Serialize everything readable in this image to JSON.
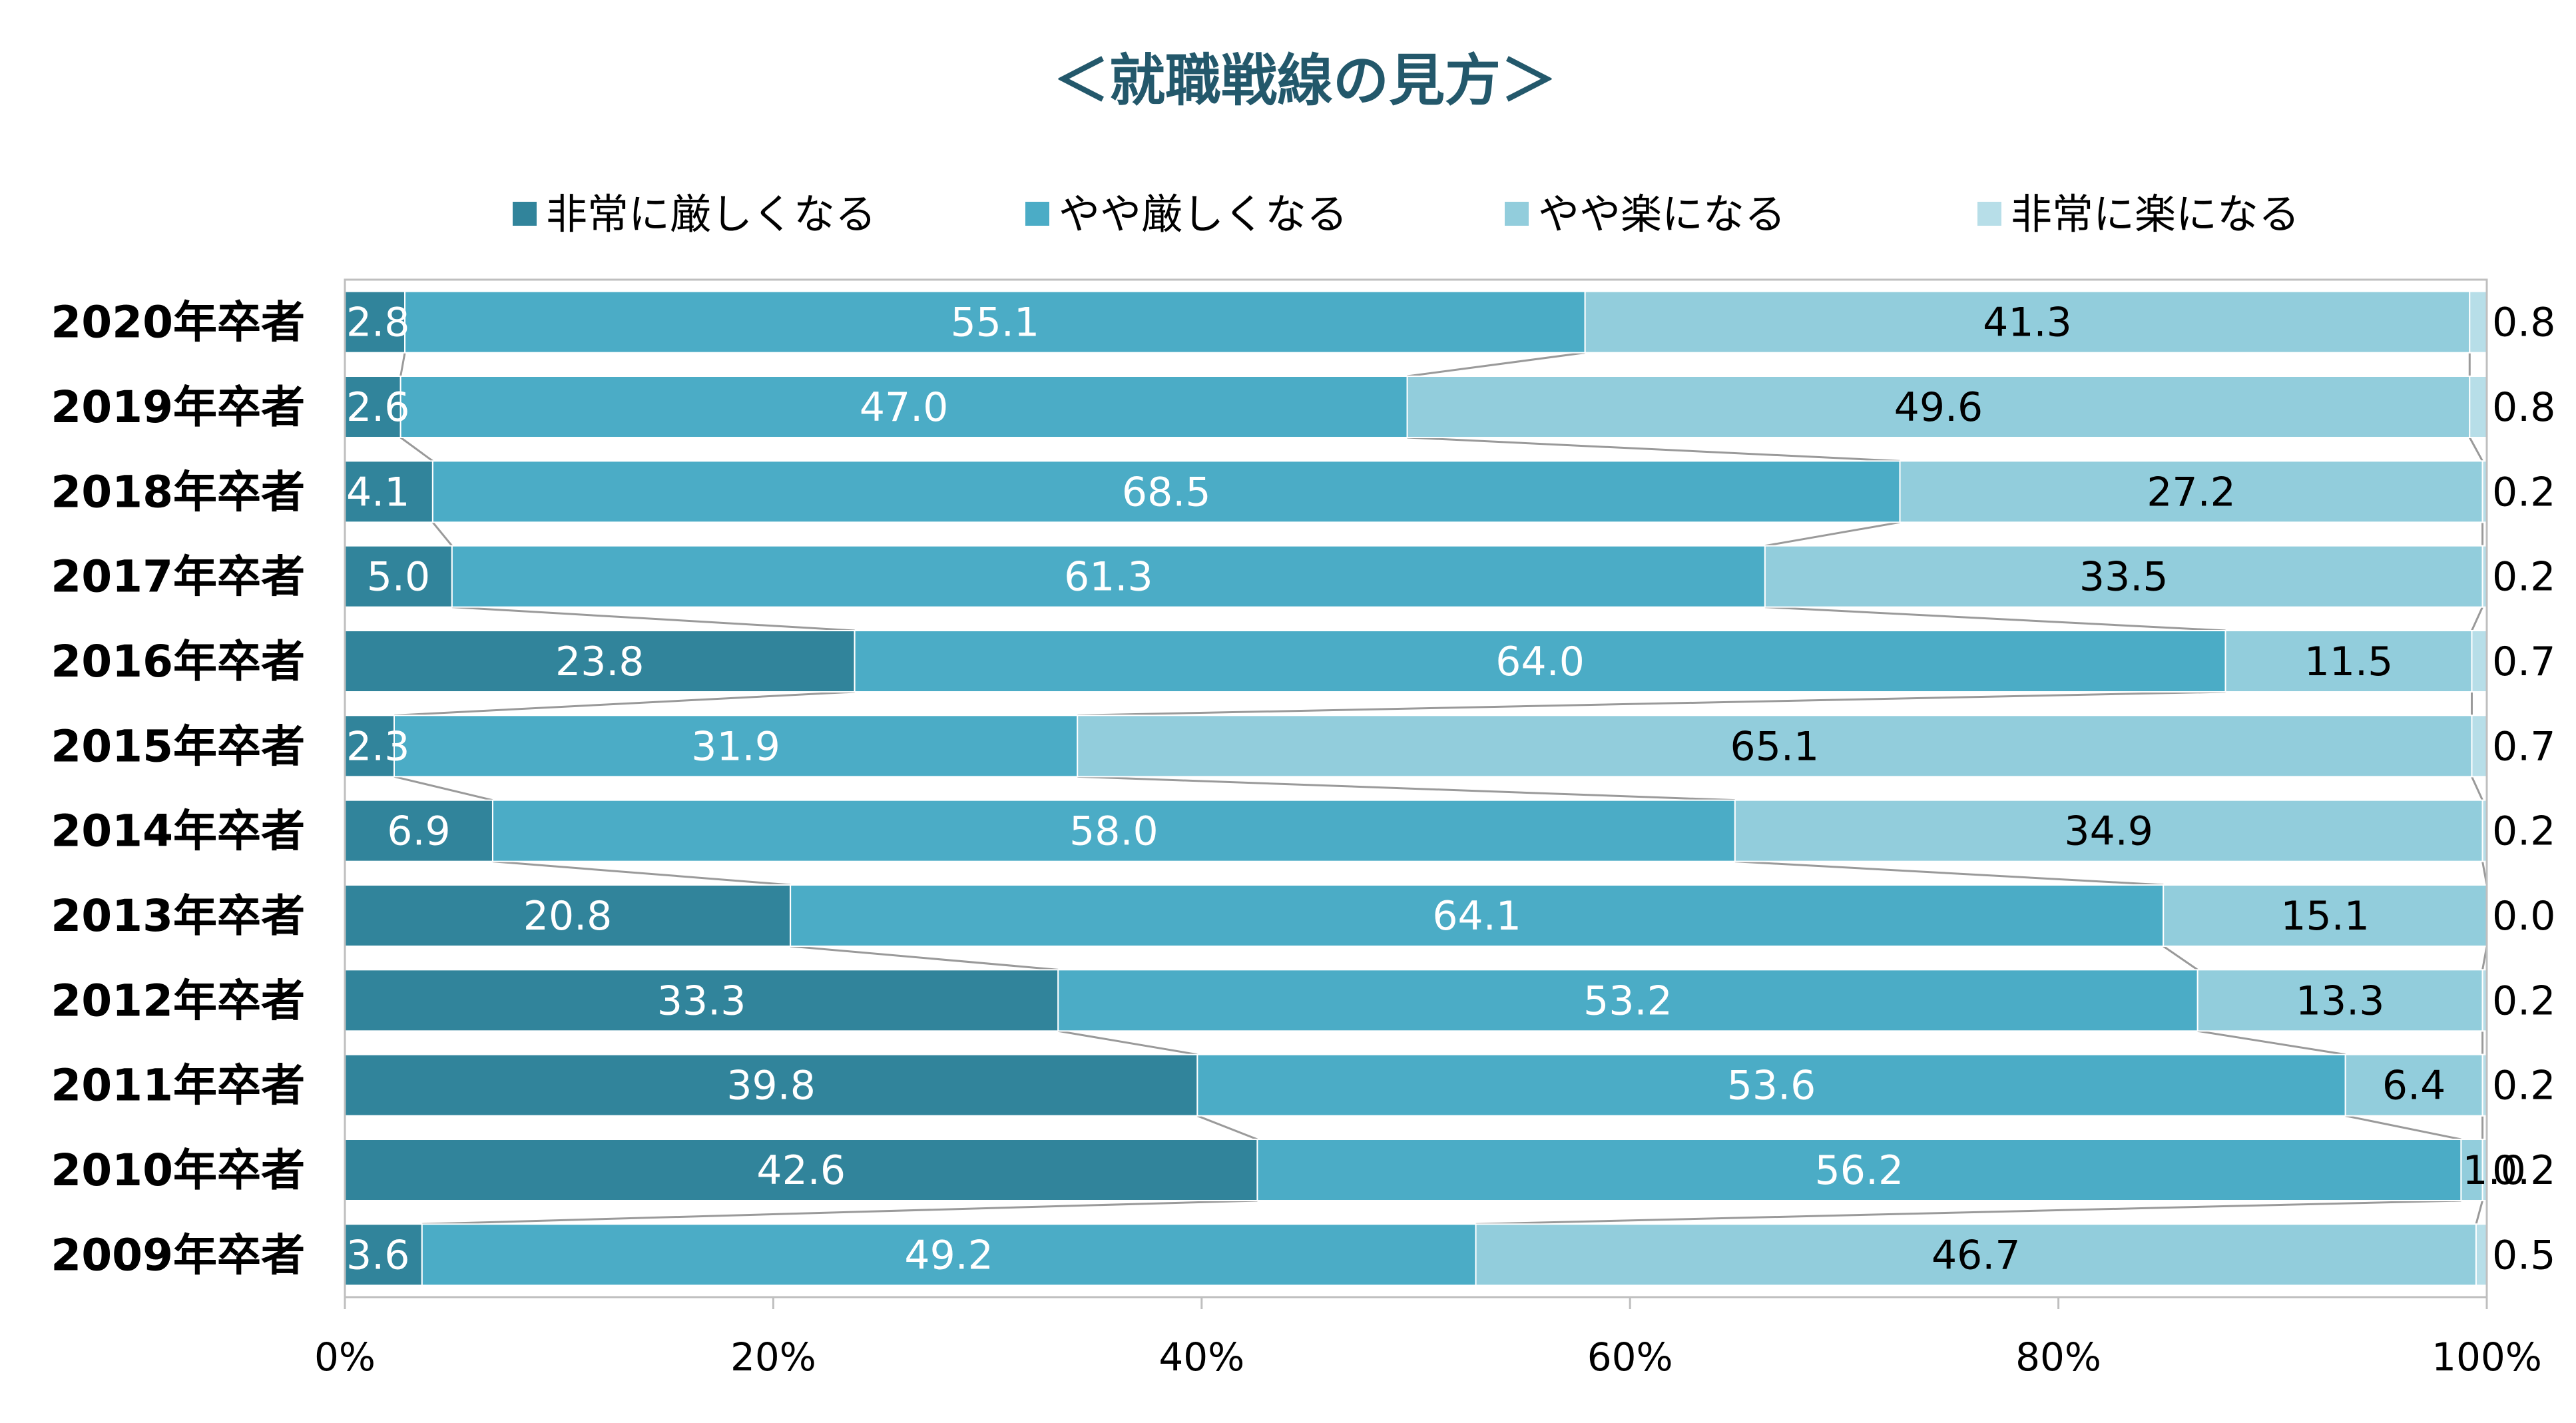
{
  "chart_data": {
    "type": "bar",
    "orientation": "horizontal",
    "stacked": "percent",
    "title": "＜就職戦線の見方＞",
    "categories": [
      "2020年卒者",
      "2019年卒者",
      "2018年卒者",
      "2017年卒者",
      "2016年卒者",
      "2015年卒者",
      "2014年卒者",
      "2013年卒者",
      "2012年卒者",
      "2011年卒者",
      "2010年卒者",
      "2009年卒者"
    ],
    "series": [
      {
        "name": "非常に厳しくなる",
        "color": "#31849b",
        "label_color": "#ffffff",
        "values": [
          2.8,
          2.6,
          4.1,
          5.0,
          23.8,
          2.3,
          6.9,
          20.8,
          33.3,
          39.8,
          42.6,
          3.6
        ]
      },
      {
        "name": "やや厳しくなる",
        "color": "#4bacc6",
        "label_color": "#ffffff",
        "values": [
          55.1,
          47.0,
          68.5,
          61.3,
          64.0,
          31.9,
          58.0,
          64.1,
          53.2,
          53.6,
          56.2,
          49.2
        ]
      },
      {
        "name": "やや楽になる",
        "color": "#92cddc",
        "label_color": "#000000",
        "values": [
          41.3,
          49.6,
          27.2,
          33.5,
          11.5,
          65.1,
          34.9,
          15.1,
          13.3,
          6.4,
          1.0,
          46.7
        ]
      },
      {
        "name": "非常に楽になる",
        "color": "#b7dee8",
        "label_color": "#000000",
        "values": [
          0.8,
          0.8,
          0.2,
          0.2,
          0.7,
          0.7,
          0.2,
          0.0,
          0.2,
          0.2,
          0.2,
          0.5
        ]
      }
    ],
    "xlim": [
      0,
      100
    ],
    "x_ticks": [
      "0%",
      "20%",
      "40%",
      "60%",
      "80%",
      "100%"
    ],
    "legend_position": "top",
    "series_lines": true,
    "grid": false
  }
}
